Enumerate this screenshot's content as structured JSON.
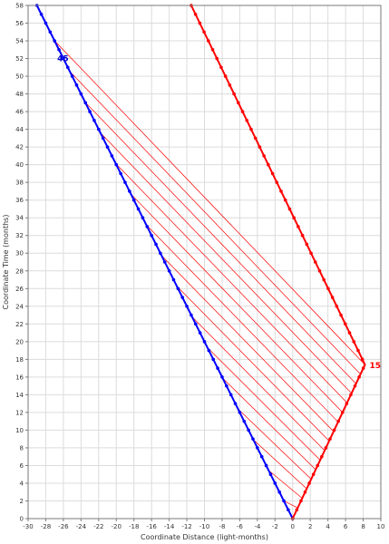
{
  "chart_data": {
    "type": "line",
    "xlabel": "Coordinate Distance (light-months)",
    "ylabel": "Coordinate Time (months)",
    "xlim": [
      -30,
      10
    ],
    "ylim": [
      0,
      58
    ],
    "x_ticks": [
      -30,
      -28,
      -26,
      -24,
      -22,
      -20,
      -18,
      -16,
      -14,
      -12,
      -10,
      -8,
      -6,
      -4,
      -2,
      0,
      2,
      4,
      6,
      8,
      10
    ],
    "y_ticks": [
      0,
      2,
      4,
      6,
      8,
      10,
      12,
      14,
      16,
      18,
      20,
      22,
      24,
      26,
      28,
      30,
      32,
      34,
      36,
      38,
      40,
      42,
      44,
      46,
      48,
      50,
      52,
      54,
      56,
      58
    ],
    "grid": true,
    "series": [
      {
        "color": "#0000ff",
        "points": [
          [
            0,
            0
          ],
          [
            -29,
            58
          ]
        ],
        "marker_every": 1
      },
      {
        "color": "#ff0000",
        "points": [
          [
            0,
            0
          ],
          [
            8.2,
            17.4
          ],
          [
            -11.5,
            58
          ]
        ],
        "marker_every": 1
      }
    ],
    "signals": {
      "color": "#ff0000",
      "start": [
        [
          0.6,
          1.2
        ],
        [
          8.2,
          17.4
        ]
      ],
      "end": [
        [
          -1.0,
          2.0
        ],
        [
          -27.0,
          54.0
        ]
      ],
      "count": 16
    },
    "annotations": [
      {
        "text": "45",
        "x": -27,
        "y": 52,
        "color": "#0000cc"
      },
      {
        "text": "15",
        "x": 8.4,
        "y": 17.3,
        "color": "#ff0000"
      }
    ]
  }
}
